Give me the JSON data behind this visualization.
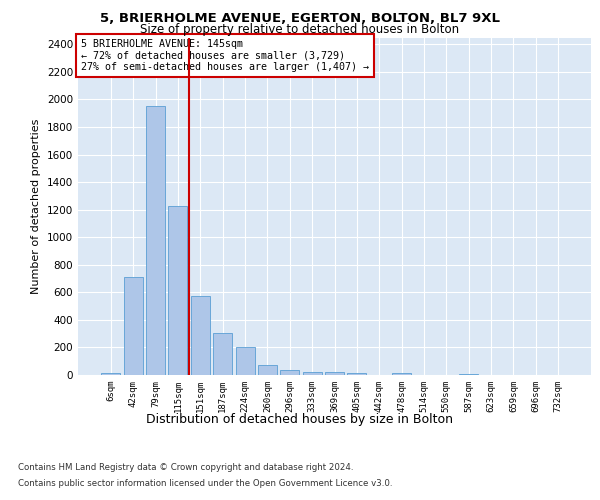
{
  "title1": "5, BRIERHOLME AVENUE, EGERTON, BOLTON, BL7 9XL",
  "title2": "Size of property relative to detached houses in Bolton",
  "xlabel": "Distribution of detached houses by size in Bolton",
  "ylabel": "Number of detached properties",
  "categories": [
    "6sqm",
    "42sqm",
    "79sqm",
    "115sqm",
    "151sqm",
    "187sqm",
    "224sqm",
    "260sqm",
    "296sqm",
    "333sqm",
    "369sqm",
    "405sqm",
    "442sqm",
    "478sqm",
    "514sqm",
    "550sqm",
    "587sqm",
    "623sqm",
    "659sqm",
    "696sqm",
    "732sqm"
  ],
  "values": [
    18,
    710,
    1950,
    1225,
    575,
    305,
    205,
    75,
    38,
    25,
    25,
    18,
    0,
    15,
    0,
    0,
    10,
    0,
    0,
    0,
    0
  ],
  "bar_color": "#aec6e8",
  "bar_edge_color": "#5a9fd4",
  "vline_x": 3.5,
  "annotation_text": "5 BRIERHOLME AVENUE: 145sqm\n← 72% of detached houses are smaller (3,729)\n27% of semi-detached houses are larger (1,407) →",
  "annotation_box_color": "#ffffff",
  "annotation_box_edge": "#cc0000",
  "vline_color": "#cc0000",
  "footer1": "Contains HM Land Registry data © Crown copyright and database right 2024.",
  "footer2": "Contains public sector information licensed under the Open Government Licence v3.0.",
  "ylim": [
    0,
    2450
  ],
  "yticks": [
    0,
    200,
    400,
    600,
    800,
    1000,
    1200,
    1400,
    1600,
    1800,
    2000,
    2200,
    2400
  ],
  "background_color": "#dce8f5"
}
